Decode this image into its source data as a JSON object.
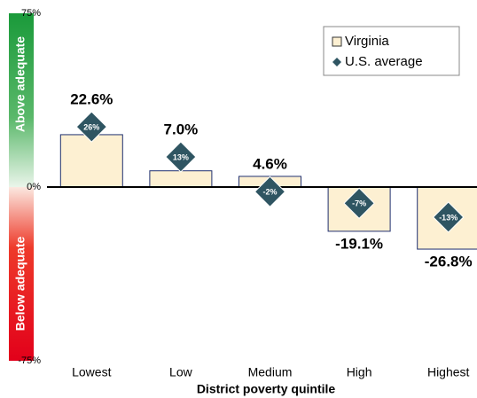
{
  "chart_data": {
    "type": "bar",
    "x_label": "District poverty quintile",
    "annotations": [
      "Above adequate",
      "Below adequate"
    ],
    "categories": [
      "Lowest",
      "Low",
      "Medium",
      "High",
      "Highest"
    ],
    "series": [
      {
        "name": "Virginia",
        "color": "#fdf0d2",
        "values": [
          22.6,
          7.0,
          4.6,
          -19.1,
          -26.8
        ],
        "value_labels": [
          "22.6%",
          "7.0%",
          "4.6%",
          "-19.1%",
          "-26.8%"
        ]
      },
      {
        "name": "U.S. average",
        "color": "#2f5562",
        "values": [
          26,
          13,
          -2,
          -7,
          -13
        ],
        "value_labels": [
          "26%",
          "13%",
          "-2%",
          "-7%",
          "-13%"
        ]
      }
    ],
    "ylim": [
      -75,
      75
    ],
    "yticks": [
      {
        "value": 75,
        "label": "75%"
      },
      {
        "value": 0,
        "label": "0%"
      },
      {
        "value": -75,
        "label": "-75%"
      }
    ],
    "legend": "upper right"
  }
}
